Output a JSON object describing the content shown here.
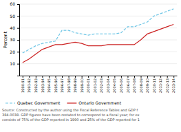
{
  "chart_data": {
    "type": "line",
    "categories": [
      "1990-91",
      "1991-92",
      "1992-93",
      "1993-94",
      "1994-95",
      "1995-96",
      "1996-97",
      "1997-98",
      "1998-99",
      "1999-00",
      "2000-01",
      "2001-02",
      "2002-03",
      "2003-04",
      "2004-05",
      "2005-06",
      "2006-07",
      "2007-08",
      "2008-09",
      "2009-10",
      "2010-11",
      "2011-12",
      "2012-13",
      "2013-14"
    ],
    "series": [
      {
        "name": "Quebec Government",
        "color": "#6ec6e6",
        "line_style": "dashed",
        "values": [
          19,
          22,
          25,
          27,
          28,
          29,
          38,
          38,
          36,
          35,
          34,
          35,
          35,
          35,
          35,
          36,
          41,
          41,
          43,
          45,
          50,
          52,
          54,
          56
        ]
      },
      {
        "name": "Ontario Government",
        "color": "#cc2222",
        "line_style": "solid",
        "values": [
          11,
          14,
          18,
          22,
          24,
          26,
          26,
          27,
          28,
          27,
          25,
          25,
          25,
          26,
          26,
          26,
          26,
          26,
          30,
          35,
          37,
          39,
          41,
          43
        ]
      }
    ],
    "y_label": "Percent",
    "ylim": [
      0,
      60
    ],
    "yticks": [
      10,
      20,
      30,
      40,
      50,
      60
    ],
    "grid": true,
    "legend": "bottom",
    "annotations": [
      "Source: Constructed by the author using the Fiscal Reference Tables and GDP f",
      "384-0038. GDP figures have been restated to correspond to a fiscal year; for ex",
      "consists of 75% of the GDP reported in 1990 and 25% of the GDP reported for 1"
    ]
  }
}
